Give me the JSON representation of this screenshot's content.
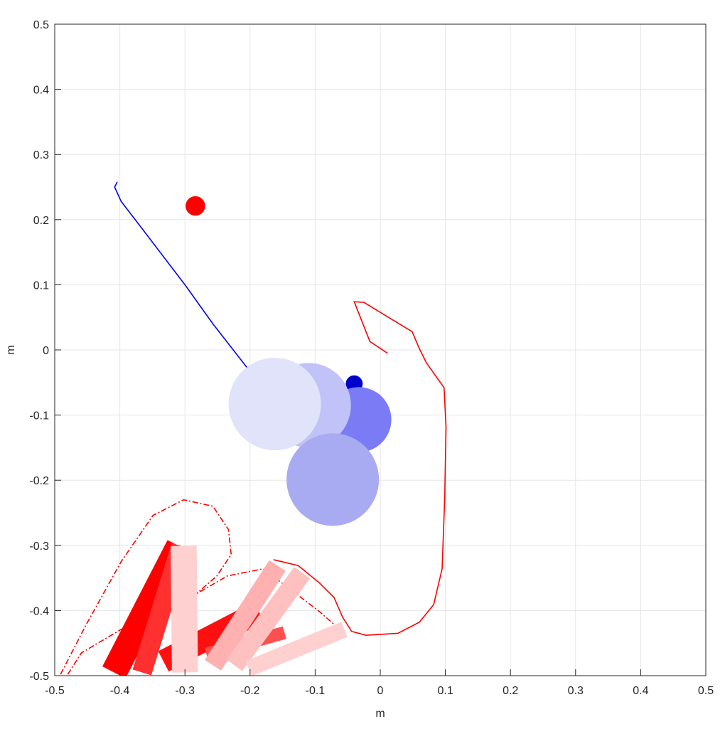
{
  "chart_data": {
    "type": "line",
    "xlabel": "m",
    "ylabel": "m",
    "xlim": [
      -0.5,
      0.5
    ],
    "ylim": [
      -0.5,
      0.5
    ],
    "xticks": [
      -0.5,
      -0.4,
      -0.3,
      -0.2,
      -0.1,
      0,
      0.1,
      0.2,
      0.3,
      0.4,
      0.5
    ],
    "yticks": [
      -0.5,
      -0.4,
      -0.3,
      -0.2,
      -0.1,
      0,
      0.1,
      0.2,
      0.3,
      0.4,
      0.5
    ],
    "grid": true,
    "lines": [
      {
        "color": "#0000ff",
        "style": "solid",
        "x": [
          -0.404,
          -0.408,
          -0.398,
          -0.371,
          -0.3,
          -0.257,
          -0.204
        ],
        "y": [
          0.258,
          0.25,
          0.228,
          0.193,
          0.1,
          0.04,
          -0.028
        ]
      },
      {
        "color": "#ff0000",
        "style": "solid",
        "x": [
          0.011,
          -0.016,
          -0.04,
          -0.025,
          0.011,
          0.049,
          0.06,
          0.071,
          0.098,
          0.101,
          0.099,
          0.095,
          0.082,
          0.06,
          0.027,
          -0.022,
          -0.044,
          -0.058,
          -0.071,
          -0.093,
          -0.126,
          -0.164
        ],
        "y": [
          -0.005,
          0.013,
          0.074,
          0.073,
          0.051,
          0.028,
          0.002,
          -0.02,
          -0.058,
          -0.118,
          -0.227,
          -0.336,
          -0.391,
          -0.418,
          -0.435,
          -0.438,
          -0.432,
          -0.41,
          -0.38,
          -0.358,
          -0.331,
          -0.322
        ]
      },
      {
        "color": "#ff0000",
        "style": "dashdot",
        "x": [
          -0.491,
          -0.453,
          -0.398,
          -0.349,
          -0.302,
          -0.257,
          -0.233,
          -0.229,
          -0.251,
          -0.289
        ],
        "y": [
          -0.498,
          -0.424,
          -0.325,
          -0.254,
          -0.23,
          -0.24,
          -0.276,
          -0.314,
          -0.347,
          -0.38
        ]
      },
      {
        "color": "#ff0000",
        "style": "dashdot",
        "x": [
          -0.48,
          -0.459,
          -0.398,
          -0.311,
          -0.235,
          -0.18,
          -0.136,
          -0.093,
          -0.062
        ],
        "y": [
          -0.498,
          -0.465,
          -0.429,
          -0.391,
          -0.347,
          -0.336,
          -0.369,
          -0.402,
          -0.429
        ]
      }
    ],
    "links": [
      {
        "color": "#ff0000",
        "width": 0.04,
        "x": [
          -0.409,
          -0.309
        ],
        "y": [
          -0.495,
          -0.301
        ]
      },
      {
        "color": "#ff3030",
        "width": 0.03,
        "x": [
          -0.366,
          -0.306
        ],
        "y": [
          -0.495,
          -0.301
        ]
      },
      {
        "color": "#ff1010",
        "width": 0.035,
        "x": [
          -0.333,
          -0.186
        ],
        "y": [
          -0.478,
          -0.402
        ]
      },
      {
        "color": "#ff5050",
        "width": 0.02,
        "x": [
          -0.267,
          -0.147
        ],
        "y": [
          -0.467,
          -0.434
        ]
      },
      {
        "color": "#ffd0d0",
        "width": 0.04,
        "x": [
          -0.3,
          -0.302
        ],
        "y": [
          -0.495,
          -0.301
        ]
      },
      {
        "color": "#ffb0b0",
        "width": 0.03,
        "x": [
          -0.257,
          -0.158
        ],
        "y": [
          -0.484,
          -0.331
        ]
      },
      {
        "color": "#ffc0c0",
        "width": 0.03,
        "x": [
          -0.224,
          -0.12
        ],
        "y": [
          -0.484,
          -0.342
        ]
      },
      {
        "color": "#ffd0d0",
        "width": 0.025,
        "x": [
          -0.202,
          -0.055
        ],
        "y": [
          -0.489,
          -0.429
        ]
      }
    ],
    "circles": {
      "x": [
        -0.284,
        -0.04,
        -0.033,
        -0.11,
        -0.073,
        -0.162
      ],
      "y": [
        0.221,
        -0.052,
        -0.107,
        -0.085,
        -0.199,
        -0.083
      ],
      "r": [
        0.015,
        0.013,
        0.05,
        0.065,
        0.071,
        0.071
      ],
      "colors": [
        "#ff0000",
        "#0000cc",
        "#7b7bf5",
        "#c0c2f8",
        "#a8aaf2",
        "#e0e3fa"
      ]
    }
  }
}
